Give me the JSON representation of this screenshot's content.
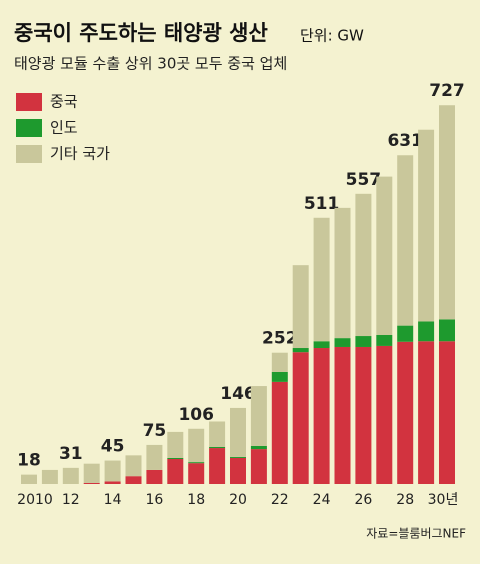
{
  "chart_data": {
    "type": "stacked_bar",
    "title": "중국이 주도하는 태양광 생산",
    "unit": "단위: GW",
    "subtitle": "태양광 모듈 수출 상위 30곳 모두 중국 업체",
    "source": "자료=블룸버그NEF",
    "categories": [
      "2010",
      null,
      "12",
      null,
      "14",
      null,
      "16",
      null,
      "18",
      null,
      "20",
      null,
      "22",
      null,
      "24",
      null,
      "26",
      null,
      "28",
      null,
      "30년"
    ],
    "series": [
      {
        "name": "중국",
        "color": "#d2333f",
        "values": [
          0,
          0,
          0,
          2,
          5,
          15,
          27,
          48,
          40,
          69,
          50,
          67,
          196,
          253,
          261,
          263,
          263,
          265,
          273,
          274,
          274
        ]
      },
      {
        "name": "인도",
        "color": "#1e9a2e",
        "values": [
          0,
          0,
          0,
          0,
          0,
          0,
          0,
          2,
          2,
          2,
          2,
          6,
          19,
          8,
          13,
          17,
          21,
          21,
          31,
          38,
          42
        ]
      },
      {
        "name": "기타 국가",
        "color": "#c9c79b",
        "values": [
          18,
          27,
          31,
          37,
          40,
          40,
          48,
          50,
          64,
          49,
          94,
          115,
          37,
          159,
          237,
          250,
          273,
          304,
          327,
          368,
          411
        ]
      }
    ],
    "totals": [
      18,
      null,
      31,
      null,
      45,
      null,
      75,
      null,
      106,
      null,
      146,
      null,
      252,
      null,
      511,
      null,
      557,
      null,
      631,
      null,
      727
    ]
  }
}
